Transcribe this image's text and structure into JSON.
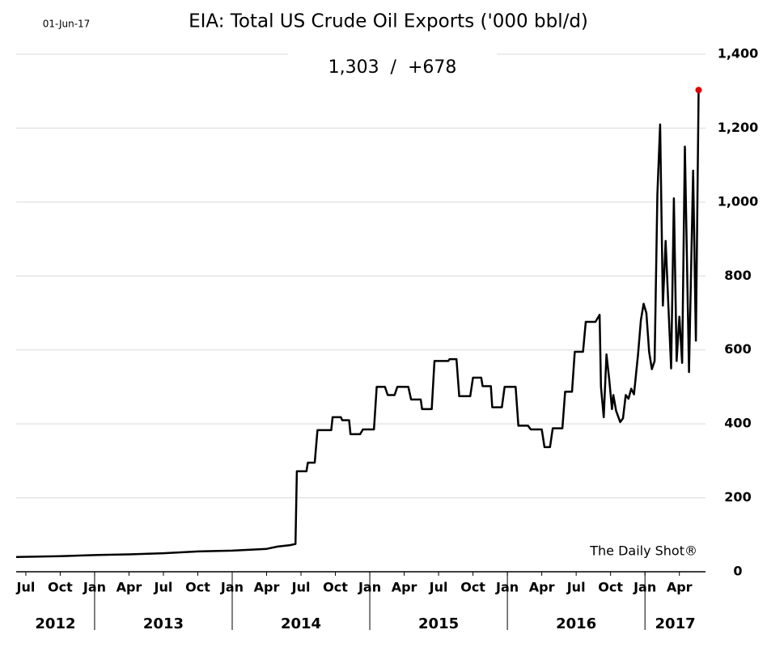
{
  "chart_data": {
    "type": "line",
    "date_note": "01-Jun-17",
    "title": "EIA: Total US Crude Oil Exports ('000 bbl/d)",
    "subtitle": "1,303  /  +678",
    "source": "The Daily Shot®",
    "xlim": [
      2012.43,
      2017.44
    ],
    "xticks": [
      {
        "value": 2012.5,
        "label": "Jul"
      },
      {
        "value": 2012.75,
        "label": "Oct"
      },
      {
        "value": 2013.0,
        "label": "Jan"
      },
      {
        "value": 2013.25,
        "label": "Apr"
      },
      {
        "value": 2013.5,
        "label": "Jul"
      },
      {
        "value": 2013.75,
        "label": "Oct"
      },
      {
        "value": 2014.0,
        "label": "Jan"
      },
      {
        "value": 2014.25,
        "label": "Apr"
      },
      {
        "value": 2014.5,
        "label": "Jul"
      },
      {
        "value": 2014.75,
        "label": "Oct"
      },
      {
        "value": 2015.0,
        "label": "Jan"
      },
      {
        "value": 2015.25,
        "label": "Apr"
      },
      {
        "value": 2015.5,
        "label": "Jul"
      },
      {
        "value": 2015.75,
        "label": "Oct"
      },
      {
        "value": 2016.0,
        "label": "Jan"
      },
      {
        "value": 2016.25,
        "label": "Apr"
      },
      {
        "value": 2016.5,
        "label": "Jul"
      },
      {
        "value": 2016.75,
        "label": "Oct"
      },
      {
        "value": 2017.0,
        "label": "Jan"
      },
      {
        "value": 2017.25,
        "label": "Apr"
      }
    ],
    "years": [
      "2012",
      "2013",
      "2014",
      "2015",
      "2016",
      "2017"
    ],
    "ylim": [
      0,
      1400
    ],
    "yticks": [
      0,
      200,
      400,
      600,
      800,
      {
        "value": 1000,
        "label": "1,000"
      },
      {
        "value": 1200,
        "label": "1,200"
      },
      {
        "value": 1400,
        "label": "1,400"
      }
    ],
    "grid": true,
    "color": "#000000",
    "last_point_color": "#e00000",
    "x": [
      2012.43,
      2012.75,
      2013.0,
      2013.25,
      2013.5,
      2013.75,
      2014.0,
      2014.25,
      2014.33,
      2014.42,
      2014.46,
      2014.47,
      2014.54,
      2014.55,
      2014.6,
      2014.62,
      2014.72,
      2014.73,
      2014.79,
      2014.8,
      2014.85,
      2014.86,
      2014.93,
      2014.95,
      2015.03,
      2015.05,
      2015.11,
      2015.13,
      2015.18,
      2015.2,
      2015.28,
      2015.3,
      2015.37,
      2015.38,
      2015.45,
      2015.47,
      2015.57,
      2015.58,
      2015.63,
      2015.65,
      2015.73,
      2015.75,
      2015.81,
      2015.82,
      2015.88,
      2015.89,
      2015.96,
      2015.98,
      2016.06,
      2016.08,
      2016.15,
      2016.17,
      2016.25,
      2016.27,
      2016.31,
      2016.33,
      2016.4,
      2016.42,
      2016.47,
      2016.49,
      2016.55,
      2016.57,
      2016.64,
      2016.67,
      2016.68,
      2016.7,
      2016.72,
      2016.74,
      2016.76,
      2016.77,
      2016.79,
      2016.82,
      2016.84,
      2016.86,
      2016.88,
      2016.9,
      2016.92,
      2016.95,
      2016.97,
      2016.99,
      2017.01,
      2017.03,
      2017.05,
      2017.07,
      2017.09,
      2017.11,
      2017.13,
      2017.15,
      2017.17,
      2017.19,
      2017.21,
      2017.23,
      2017.25,
      2017.27,
      2017.29,
      2017.32,
      2017.35,
      2017.37,
      2017.39
    ],
    "values": [
      40,
      42,
      45,
      47,
      50,
      55,
      57,
      62,
      68,
      72,
      75,
      272,
      272,
      295,
      295,
      383,
      383,
      418,
      418,
      410,
      410,
      372,
      372,
      385,
      385,
      500,
      500,
      478,
      478,
      500,
      500,
      466,
      466,
      440,
      440,
      570,
      570,
      575,
      575,
      475,
      475,
      525,
      525,
      502,
      502,
      445,
      445,
      500,
      500,
      395,
      395,
      385,
      385,
      337,
      337,
      388,
      388,
      487,
      487,
      595,
      595,
      676,
      676,
      695,
      500,
      418,
      588,
      520,
      440,
      478,
      435,
      405,
      415,
      478,
      468,
      495,
      480,
      590,
      680,
      725,
      700,
      595,
      548,
      570,
      1020,
      1210,
      720,
      895,
      720,
      550,
      1010,
      570,
      690,
      565,
      1150,
      540,
      1085,
      625,
      1303
    ]
  }
}
